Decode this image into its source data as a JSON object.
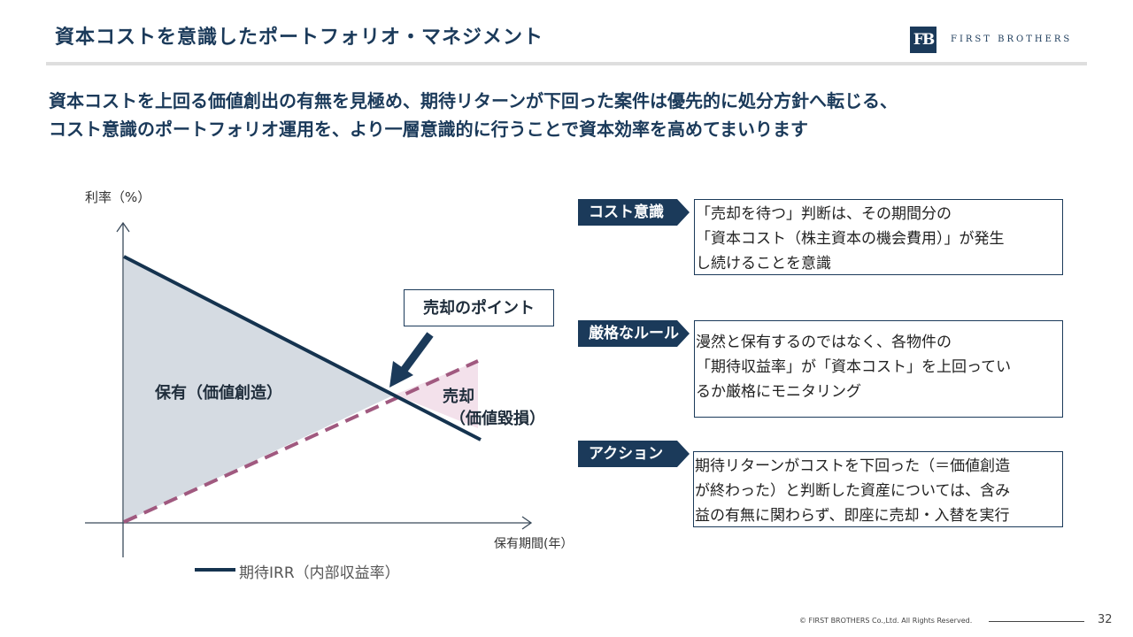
{
  "header": {
    "title": "資本コストを意識したポートフォリオ・マネジメント",
    "logo_mark": "FB",
    "logo_text": "FIRST BROTHERS"
  },
  "lead": {
    "line1": "資本コストを上回る価値創出の有無を見極め、期待リターンが下回った案件は優先的に処分方針へ転じる、",
    "line2": "コスト意識のポートフォリオ運用を、より一層意識的に行うことで資本効率を高めてまいります"
  },
  "chart": {
    "y_axis_label": "利率（%）",
    "x_axis_label": "保有期間(年）",
    "hold_label": "保有（価値創造）",
    "sell_label_1": "売却",
    "sell_label_2": "（価値毀損）",
    "callout": "売却のポイント",
    "legend_irr": "期待IRR（内部収益率）",
    "colors": {
      "irr_line": "#15334f",
      "cost_line": "#a0597f",
      "hold_fill": "#d5dbe2",
      "sell_fill": "#f3e1eb"
    }
  },
  "points": [
    {
      "tag": "コスト意識",
      "lines": [
        "「売却を待つ」判断は、その期間分の",
        "「資本コスト（株主資本の機会費用）」が発生",
        "し続けることを意識"
      ]
    },
    {
      "tag": "厳格なルール",
      "lines": [
        "漫然と保有するのではなく、各物件の",
        "「期待収益率」が「資本コスト」を上回ってい",
        "るか厳格にモニタリング"
      ]
    },
    {
      "tag": "アクション",
      "lines": [
        "期待リターンがコストを下回った（＝価値創造",
        "が終わった）と判断した資産については、含み",
        "益の有無に関わらず、即座に売却・入替を実行"
      ]
    }
  ],
  "footer": {
    "copyright": "© FIRST BROTHERS Co.,Ltd. All Rights Reserved.",
    "page": "32"
  }
}
